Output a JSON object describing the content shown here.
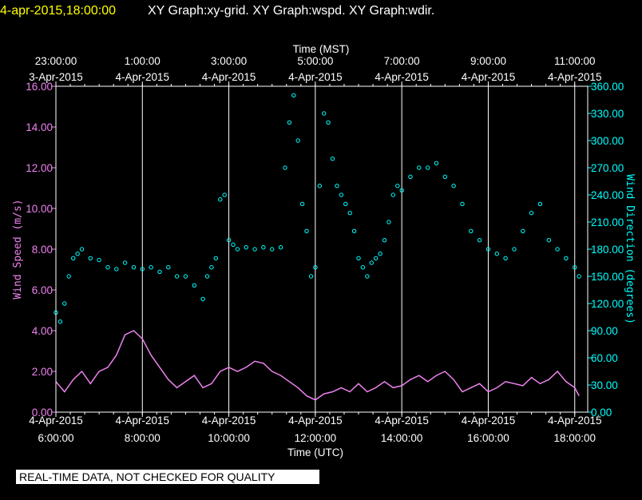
{
  "header": {
    "timestamp": "4-apr-2015,18:00:00",
    "graphs": "XY Graph:xy-grid.  XY Graph:wspd.  XY Graph:wdir.",
    "timestamp_color": "#ffff00",
    "graphs_color": "#ffffff"
  },
  "footer": {
    "notice": "REAL-TIME DATA, NOT CHECKED FOR QUALITY"
  },
  "chart_data": {
    "type": "scatter",
    "x_top_title": "Time (MST)",
    "x_bottom_title": "Time (UTC)",
    "y_left_title": "Wind Speed (m/s)",
    "y_right_title": "Wind Direction (degrees)",
    "xlim_utc_hours": [
      6,
      18.3
    ],
    "ylim_left": [
      0,
      16
    ],
    "ylim_right": [
      0,
      360
    ],
    "grid": "vertical-lines",
    "x_ticks_bottom": [
      {
        "x": 6,
        "date": "4-Apr-2015",
        "time": "6:00:00"
      },
      {
        "x": 8,
        "date": "4-Apr-2015",
        "time": "8:00:00"
      },
      {
        "x": 10,
        "date": "4-Apr-2015",
        "time": "10:00:00"
      },
      {
        "x": 12,
        "date": "4-Apr-2015",
        "time": "12:00:00"
      },
      {
        "x": 14,
        "date": "4-Apr-2015",
        "time": "14:00:00"
      },
      {
        "x": 16,
        "date": "4-Apr-2015",
        "time": "16:00:00"
      },
      {
        "x": 18,
        "date": "4-Apr-2015",
        "time": "18:00:00"
      }
    ],
    "x_ticks_top": [
      {
        "x": 6,
        "date": "3-Apr-2015",
        "time": "23:00:00"
      },
      {
        "x": 8,
        "date": "4-Apr-2015",
        "time": "1:00:00"
      },
      {
        "x": 10,
        "date": "4-Apr-2015",
        "time": "3:00:00"
      },
      {
        "x": 12,
        "date": "4-Apr-2015",
        "time": "5:00:00"
      },
      {
        "x": 14,
        "date": "4-Apr-2015",
        "time": "7:00:00"
      },
      {
        "x": 16,
        "date": "4-Apr-2015",
        "time": "9:00:00"
      },
      {
        "x": 18,
        "date": "4-Apr-2015",
        "time": "11:00:00"
      }
    ],
    "y_ticks_left": [
      "0.00",
      "2.00",
      "4.00",
      "6.00",
      "8.00",
      "10.00",
      "12.00",
      "14.00",
      "16.00"
    ],
    "y_ticks_right": [
      "0.00",
      "30.00",
      "60.00",
      "90.00",
      "120.00",
      "150.00",
      "180.00",
      "210.00",
      "240.00",
      "270.00",
      "300.00",
      "330.00",
      "360.00"
    ],
    "series": [
      {
        "color": "#ee82ee",
        "axis": "left",
        "style": "line",
        "x": [
          6.0,
          6.2,
          6.4,
          6.6,
          6.8,
          7.0,
          7.2,
          7.4,
          7.6,
          7.8,
          8.0,
          8.2,
          8.4,
          8.6,
          8.8,
          9.0,
          9.2,
          9.4,
          9.6,
          9.8,
          10.0,
          10.2,
          10.4,
          10.6,
          10.8,
          11.0,
          11.2,
          11.4,
          11.6,
          11.8,
          12.0,
          12.2,
          12.4,
          12.6,
          12.8,
          13.0,
          13.2,
          13.4,
          13.6,
          13.8,
          14.0,
          14.2,
          14.4,
          14.6,
          14.8,
          15.0,
          15.2,
          15.4,
          15.6,
          15.8,
          16.0,
          16.2,
          16.4,
          16.6,
          16.8,
          17.0,
          17.2,
          17.4,
          17.6,
          17.8,
          18.0,
          18.1
        ],
        "y": [
          1.5,
          1.0,
          1.6,
          2.0,
          1.4,
          2.0,
          2.2,
          2.8,
          3.8,
          4.0,
          3.6,
          2.8,
          2.2,
          1.6,
          1.2,
          1.5,
          1.8,
          1.2,
          1.4,
          2.0,
          2.2,
          2.0,
          2.2,
          2.5,
          2.4,
          2.0,
          1.8,
          1.5,
          1.2,
          0.8,
          0.6,
          0.9,
          1.0,
          1.2,
          1.0,
          1.4,
          1.0,
          1.2,
          1.5,
          1.2,
          1.3,
          1.6,
          1.8,
          1.5,
          1.8,
          2.0,
          1.6,
          1.0,
          1.2,
          1.4,
          1.0,
          1.2,
          1.5,
          1.4,
          1.3,
          1.7,
          1.4,
          1.6,
          2.0,
          1.5,
          1.2,
          0.8
        ]
      },
      {
        "color": "#00ffff",
        "axis": "right",
        "style": "points",
        "x": [
          6.0,
          6.1,
          6.2,
          6.3,
          6.4,
          6.5,
          6.6,
          6.8,
          7.0,
          7.2,
          7.4,
          7.6,
          7.8,
          8.0,
          8.2,
          8.4,
          8.6,
          8.8,
          9.0,
          9.2,
          9.4,
          9.5,
          9.6,
          9.7,
          9.8,
          9.9,
          10.0,
          10.1,
          10.2,
          10.4,
          10.6,
          10.8,
          11.0,
          11.2,
          11.3,
          11.4,
          11.5,
          11.6,
          11.7,
          11.8,
          11.9,
          12.0,
          12.1,
          12.2,
          12.3,
          12.4,
          12.5,
          12.6,
          12.7,
          12.8,
          12.9,
          13.0,
          13.1,
          13.2,
          13.3,
          13.4,
          13.5,
          13.6,
          13.7,
          13.8,
          13.9,
          14.0,
          14.2,
          14.4,
          14.6,
          14.8,
          15.0,
          15.2,
          15.4,
          15.6,
          15.8,
          16.0,
          16.2,
          16.4,
          16.6,
          16.8,
          17.0,
          17.2,
          17.4,
          17.6,
          17.8,
          18.0,
          18.1
        ],
        "y": [
          110,
          100,
          120,
          150,
          170,
          175,
          180,
          170,
          168,
          160,
          158,
          165,
          160,
          158,
          160,
          155,
          160,
          150,
          150,
          140,
          125,
          150,
          160,
          170,
          235,
          240,
          190,
          185,
          180,
          182,
          180,
          182,
          180,
          182,
          270,
          320,
          350,
          300,
          230,
          200,
          150,
          160,
          250,
          330,
          320,
          280,
          250,
          240,
          230,
          220,
          200,
          170,
          160,
          150,
          165,
          170,
          175,
          190,
          210,
          240,
          250,
          245,
          260,
          270,
          270,
          275,
          260,
          250,
          230,
          200,
          190,
          180,
          175,
          170,
          180,
          200,
          220,
          230,
          190,
          180,
          170,
          160,
          150
        ]
      }
    ]
  }
}
